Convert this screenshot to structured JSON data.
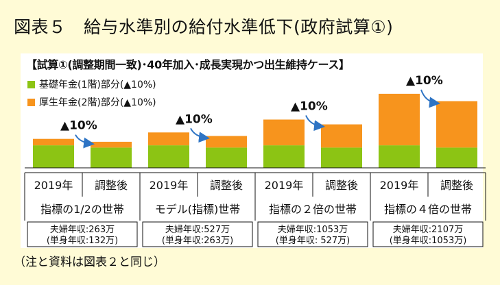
{
  "page_title": "図表５　給与水準別の給付水準低下(政府試算①)",
  "footnote": "（注と資料は図表２と同じ）",
  "colors": {
    "basic": "#8CC414",
    "employee": "#F7941D",
    "arrow": "#2E74C4",
    "background": "#FFFBD6"
  },
  "chart_data": {
    "type": "bar",
    "stacked": true,
    "title": "【試算①(調整期間一致)･40年加入･成長実現かつ出生維持ケース】",
    "legend": [
      {
        "name": "基礎年金(1階)部分(▲10%)",
        "color": "#8CC414"
      },
      {
        "name": "厚生年金(2階)部分(▲10%)",
        "color": "#F7941D"
      }
    ],
    "legend_position": "top-left",
    "categories": [
      "2019年",
      "調整後",
      "2019年",
      "調整後",
      "2019年",
      "調整後",
      "2019年",
      "調整後"
    ],
    "series": [
      {
        "name": "基礎年金(1階)部分(▲10%)",
        "values": [
          14,
          12.6,
          14,
          12.6,
          14,
          12.6,
          14,
          12.6
        ]
      },
      {
        "name": "厚生年金(2階)部分(▲10%)",
        "values": [
          4,
          3.6,
          8,
          7.2,
          16,
          14.4,
          32,
          28.8
        ]
      }
    ],
    "groups": [
      {
        "label": "指標の1/2の世帯",
        "income_line1": "夫婦年収:263万",
        "income_line2": "(単身年収:132万)"
      },
      {
        "label": "モデル(指標)世帯",
        "income_line1": "夫婦年収:527万",
        "income_line2": "(単身年収:263万)"
      },
      {
        "label": "指標の２倍の世帯",
        "income_line1": "夫婦年収:1053万",
        "income_line2": "(単身年収: 527万)"
      },
      {
        "label": "指標の４倍の世帯",
        "income_line1": "夫婦年収:2107万",
        "income_line2": "(単身年収:1053万)"
      }
    ],
    "annotation": "▲10%",
    "ylim": [
      0,
      50
    ],
    "grid": false
  }
}
